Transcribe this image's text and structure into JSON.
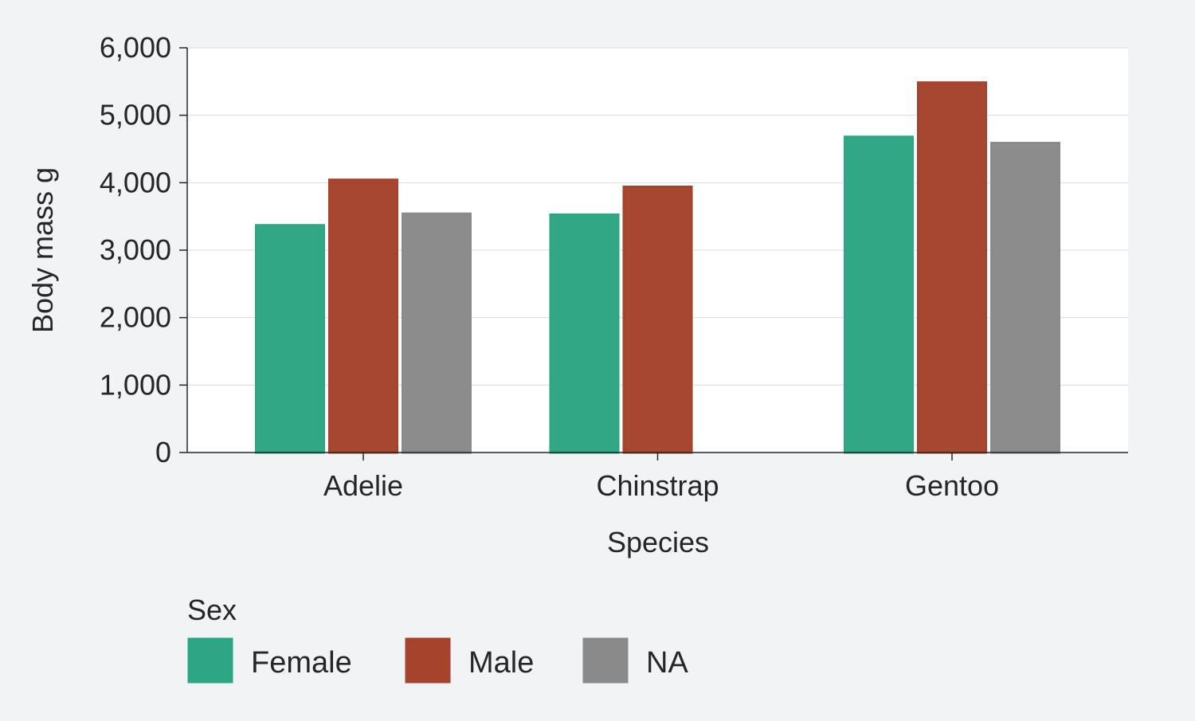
{
  "chart_data": {
    "type": "bar",
    "title": "",
    "xlabel": "Species",
    "ylabel": "Body mass g",
    "categories": [
      "Adelie",
      "Chinstrap",
      "Gentoo"
    ],
    "series": [
      {
        "name": "Female",
        "color": "#2ea584",
        "values": [
          3369,
          3527,
          4680
        ]
      },
      {
        "name": "Male",
        "color": "#a5432d",
        "values": [
          4043,
          3939,
          5485
        ]
      },
      {
        "name": "NA",
        "color": "#8a8a8a",
        "values": [
          3540,
          null,
          4588
        ]
      }
    ],
    "ylim": [
      0,
      6000
    ],
    "yticks": [
      0,
      1000,
      2000,
      3000,
      4000,
      5000,
      6000
    ],
    "ytick_labels": [
      "0",
      "1,000",
      "2,000",
      "3,000",
      "4,000",
      "5,000",
      "6,000"
    ],
    "grid": "horizontal",
    "legend": {
      "title": "Sex",
      "placement": "bottom-left"
    }
  }
}
